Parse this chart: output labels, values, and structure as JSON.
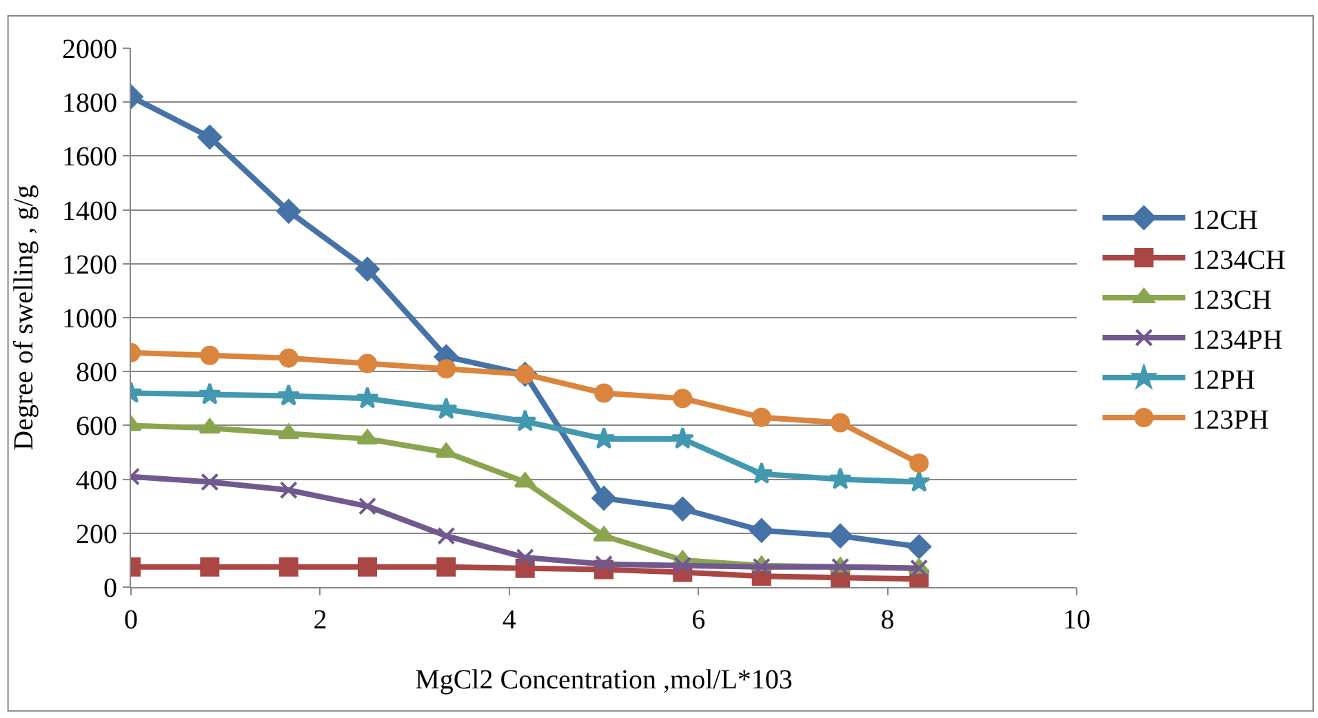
{
  "chart_data": {
    "type": "line",
    "xlabel": "MgCl2 Concentration ,mol/L*103",
    "ylabel": "Degree of swelling , g/g",
    "x": [
      0,
      0.833,
      1.667,
      2.5,
      3.333,
      4.167,
      5,
      5.833,
      6.667,
      7.5,
      8.333
    ],
    "series": [
      {
        "name": "12CH",
        "color": "#4572a7",
        "marker": "diamond",
        "values": [
          1820,
          1670,
          1395,
          1180,
          855,
          790,
          330,
          290,
          210,
          190,
          150
        ]
      },
      {
        "name": "1234CH",
        "color": "#aa4643",
        "marker": "square",
        "values": [
          75,
          75,
          75,
          75,
          75,
          70,
          65,
          55,
          40,
          35,
          30
        ]
      },
      {
        "name": "123CH",
        "color": "#89a54e",
        "marker": "triangle",
        "values": [
          600,
          590,
          570,
          550,
          500,
          390,
          190,
          100,
          80,
          75,
          70
        ]
      },
      {
        "name": "1234PH",
        "color": "#71588f",
        "marker": "cross",
        "values": [
          410,
          390,
          360,
          300,
          190,
          110,
          85,
          80,
          75,
          75,
          70
        ]
      },
      {
        "name": "12PH",
        "color": "#4198af",
        "marker": "star",
        "values": [
          720,
          715,
          710,
          700,
          660,
          615,
          550,
          550,
          420,
          400,
          390
        ]
      },
      {
        "name": "123PH",
        "color": "#db843d",
        "marker": "circle",
        "values": [
          870,
          860,
          850,
          830,
          810,
          790,
          720,
          700,
          630,
          610,
          460
        ]
      }
    ],
    "xlim": [
      0,
      10
    ],
    "xticks": [
      0,
      2,
      4,
      6,
      8,
      10
    ],
    "ylim": [
      0,
      2000
    ],
    "yticks": [
      0,
      200,
      400,
      600,
      800,
      1000,
      1200,
      1400,
      1600,
      1800,
      2000
    ],
    "grid": "y",
    "legend": "right",
    "line_style": "solid"
  }
}
